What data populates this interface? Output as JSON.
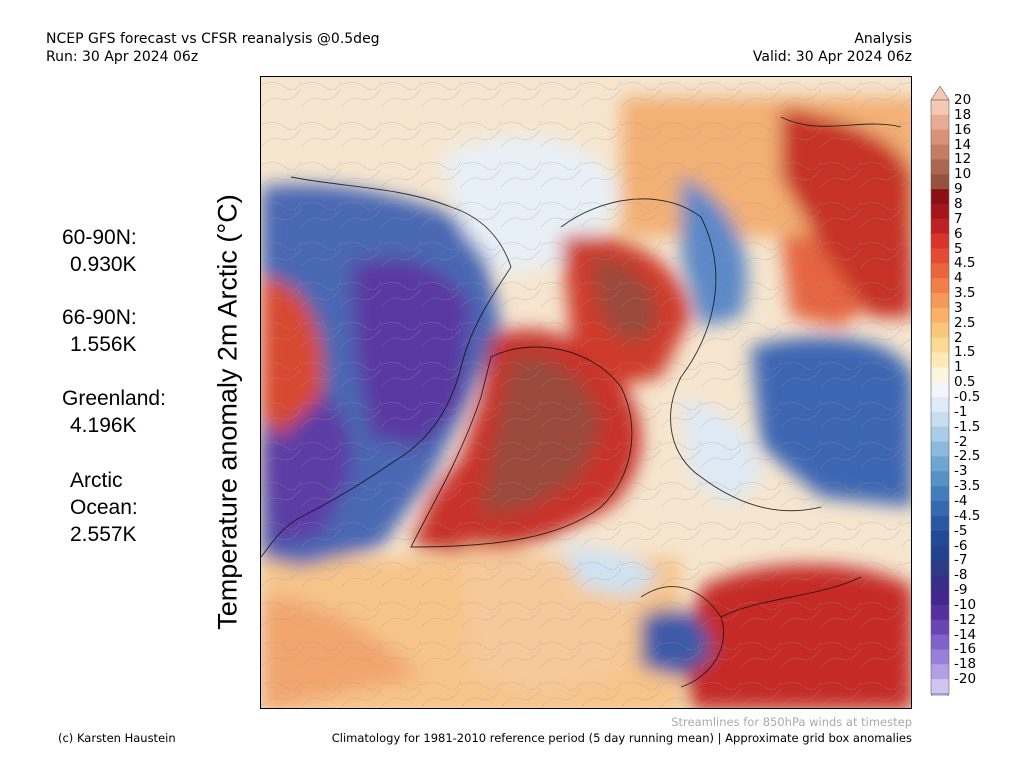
{
  "header": {
    "title": "NCEP GFS forecast vs CFSR reanalysis @0.5deg",
    "run": "Run: 30 Apr 2024 06z",
    "mode": "Analysis",
    "valid": "Valid: 30 Apr 2024 06z"
  },
  "vertical_title": "Temperature anomaly 2m Arctic (°C)",
  "stats": [
    {
      "label": "60-90N:",
      "value": "0.930K"
    },
    {
      "label": "66-90N:",
      "value": "1.556K"
    },
    {
      "label": "Greenland:",
      "value": "4.196K"
    },
    {
      "label": "Arctic Ocean:",
      "label_line1": "Arctic",
      "label_line2": "Ocean:",
      "value": "2.557K"
    }
  ],
  "colorbar": {
    "labels": [
      "20",
      "18",
      "16",
      "14",
      "12",
      "10",
      "9",
      "8",
      "7",
      "6",
      "5",
      "4.5",
      "4",
      "3.5",
      "3",
      "2.5",
      "2",
      "1.5",
      "1",
      "0.5",
      "-0.5",
      "-1",
      "-1.5",
      "-2",
      "-2.5",
      "-3",
      "-3.5",
      "-4",
      "-4.5",
      "-5",
      "-6",
      "-7",
      "-8",
      "-9",
      "-10",
      "-12",
      "-14",
      "-16",
      "-18",
      "-20"
    ],
    "colors": [
      "#f3c9b5",
      "#e7ab93",
      "#d99276",
      "#c57d62",
      "#ad6650",
      "#96503e",
      "#8a1015",
      "#a4161b",
      "#bf2023",
      "#d8342a",
      "#e54a33",
      "#ec643d",
      "#f27e49",
      "#f69856",
      "#f8b166",
      "#f9c77c",
      "#fbda95",
      "#fce9b5",
      "#fdf4dd",
      "#f2f6fa",
      "#dfebf6",
      "#c7def0",
      "#a9cde6",
      "#8bbadc",
      "#6ea6d1",
      "#5792c6",
      "#437ebb",
      "#356aaf",
      "#2a58a2",
      "#234a97",
      "#24418d",
      "#2b3b86",
      "#352f87",
      "#44278d",
      "#54309e",
      "#6945b3",
      "#7f63c8",
      "#987fd8",
      "#b39fe6",
      "#d1c4f2"
    ]
  },
  "footer": {
    "streamlines_note": "Streamlines for 850hPa winds at timestep",
    "credit": "(c) Karsten Haustein",
    "climatology": "Climatology for 1981-2010 reference period (5 day running mean) | Approximate grid box anomalies"
  },
  "map_regions": {
    "warm_anomaly_color": "#c1272d",
    "strong_warm_color": "#9a4a3a",
    "cold_anomaly_color": "#3c5aa8",
    "deep_cold_color": "#6040a8",
    "neutral_color": "#f3f6fa"
  }
}
